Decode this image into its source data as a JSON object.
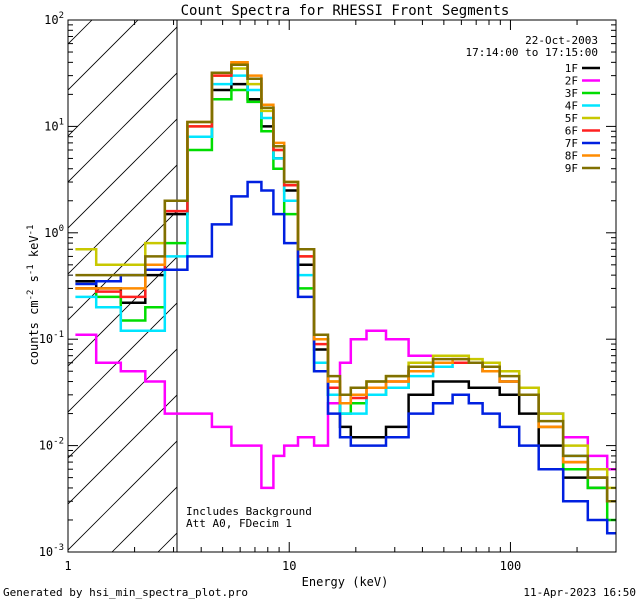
{
  "chart_data": {
    "type": "line",
    "title": "Count Spectra for RHESSI Front Segments",
    "xlabel": "Energy (keV)",
    "ylabel": "counts cm-2 s-1 keV-1",
    "xscale": "log",
    "yscale": "log",
    "xlim": [
      1,
      300
    ],
    "ylim": [
      0.001,
      100
    ],
    "x_ticks": [
      {
        "value": 1,
        "label": "1"
      },
      {
        "value": 10,
        "label": "10"
      },
      {
        "value": 100,
        "label": "100"
      }
    ],
    "y_ticks": [
      {
        "value": 0.001,
        "base": "10",
        "exp": "-3"
      },
      {
        "value": 0.01,
        "base": "10",
        "exp": "-2"
      },
      {
        "value": 0.1,
        "base": "10",
        "exp": "-1"
      },
      {
        "value": 1,
        "base": "10",
        "exp": "0"
      },
      {
        "value": 10,
        "base": "10",
        "exp": "1"
      },
      {
        "value": 100,
        "base": "10",
        "exp": "2"
      }
    ],
    "date": "22-Oct-2003",
    "time_range": "17:14:00 to 17:15:00",
    "shaded_region": {
      "from": 1,
      "to": 3,
      "style": "hatched"
    },
    "annotations": [
      "Includes Background",
      "Att A0, FDecim 1"
    ],
    "series": [
      {
        "name": "1F",
        "color": "#000000",
        "x": [
          1.2,
          1.5,
          2,
          2.5,
          3,
          4,
          5,
          6,
          7,
          8,
          9,
          10,
          12,
          14,
          16,
          18,
          20,
          25,
          30,
          40,
          50,
          60,
          70,
          80,
          100,
          120,
          150,
          200,
          250,
          300
        ],
        "values": [
          0.35,
          0.3,
          0.22,
          0.4,
          1.5,
          8,
          22,
          25,
          18,
          10,
          5,
          2.5,
          0.5,
          0.08,
          0.03,
          0.015,
          0.012,
          0.012,
          0.015,
          0.03,
          0.04,
          0.04,
          0.035,
          0.035,
          0.03,
          0.02,
          0.01,
          0.005,
          0.004,
          0.003
        ]
      },
      {
        "name": "2F",
        "color": "#ff00ff",
        "x": [
          1.2,
          1.5,
          2,
          2.5,
          3,
          4,
          5,
          6,
          7,
          8,
          9,
          10,
          12,
          14,
          16,
          18,
          20,
          25,
          30,
          40,
          50,
          60,
          70,
          80,
          100,
          120,
          150,
          200,
          250,
          300
        ],
        "values": [
          0.11,
          0.06,
          0.05,
          0.04,
          0.02,
          0.02,
          0.015,
          0.01,
          0.01,
          0.004,
          0.008,
          0.01,
          0.012,
          0.01,
          0.025,
          0.06,
          0.1,
          0.12,
          0.1,
          0.07,
          0.06,
          0.06,
          0.06,
          0.05,
          0.04,
          0.03,
          0.02,
          0.012,
          0.008,
          0.006
        ]
      },
      {
        "name": "3F",
        "color": "#00dd00",
        "x": [
          1.2,
          1.5,
          2,
          2.5,
          3,
          4,
          5,
          6,
          7,
          8,
          9,
          10,
          12,
          14,
          16,
          18,
          20,
          25,
          30,
          40,
          50,
          60,
          70,
          80,
          100,
          120,
          150,
          200,
          250,
          300
        ],
        "values": [
          0.3,
          0.25,
          0.15,
          0.2,
          0.8,
          6,
          18,
          22,
          17,
          9,
          4,
          1.5,
          0.3,
          0.05,
          0.03,
          0.02,
          0.025,
          0.03,
          0.035,
          0.05,
          0.06,
          0.06,
          0.06,
          0.05,
          0.04,
          0.03,
          0.015,
          0.006,
          0.004,
          0.002
        ]
      },
      {
        "name": "4F",
        "color": "#00e5ff",
        "x": [
          1.2,
          1.5,
          2,
          2.5,
          3,
          4,
          5,
          6,
          7,
          8,
          9,
          10,
          12,
          14,
          16,
          18,
          20,
          25,
          30,
          40,
          50,
          60,
          70,
          80,
          100,
          120,
          150,
          200,
          250,
          300
        ],
        "values": [
          0.25,
          0.2,
          0.12,
          0.12,
          0.6,
          8,
          25,
          30,
          22,
          12,
          5,
          2,
          0.4,
          0.06,
          0.03,
          0.02,
          0.02,
          0.03,
          0.035,
          0.045,
          0.055,
          0.06,
          0.06,
          0.05,
          0.04,
          0.03,
          0.02,
          0.008,
          0.005,
          0.003
        ]
      },
      {
        "name": "5F",
        "color": "#c8c800",
        "x": [
          1.2,
          1.5,
          2,
          2.5,
          3,
          4,
          5,
          6,
          7,
          8,
          9,
          10,
          12,
          14,
          16,
          18,
          20,
          25,
          30,
          40,
          50,
          60,
          70,
          80,
          100,
          120,
          150,
          200,
          250,
          300
        ],
        "values": [
          0.7,
          0.5,
          0.5,
          0.8,
          2,
          10,
          30,
          35,
          25,
          14,
          6,
          3,
          0.6,
          0.1,
          0.04,
          0.03,
          0.035,
          0.04,
          0.045,
          0.06,
          0.07,
          0.07,
          0.065,
          0.06,
          0.05,
          0.035,
          0.02,
          0.01,
          0.006,
          0.004
        ]
      },
      {
        "name": "6F",
        "color": "#ff2020",
        "x": [
          1.2,
          1.5,
          2,
          2.5,
          3,
          4,
          5,
          6,
          7,
          8,
          9,
          10,
          12,
          14,
          16,
          18,
          20,
          25,
          30,
          40,
          50,
          60,
          70,
          80,
          100,
          120,
          150,
          200,
          250,
          300
        ],
        "values": [
          0.3,
          0.28,
          0.25,
          0.45,
          1.6,
          10,
          30,
          38,
          28,
          15,
          6,
          2.8,
          0.6,
          0.09,
          0.035,
          0.025,
          0.028,
          0.035,
          0.04,
          0.05,
          0.06,
          0.06,
          0.06,
          0.05,
          0.04,
          0.03,
          0.015,
          0.007,
          0.005,
          0.003
        ]
      },
      {
        "name": "7F",
        "color": "#0020e0",
        "x": [
          1.2,
          1.5,
          2,
          2.5,
          3,
          4,
          5,
          6,
          7,
          8,
          9,
          10,
          12,
          14,
          16,
          18,
          20,
          25,
          30,
          40,
          50,
          60,
          70,
          80,
          100,
          120,
          150,
          200,
          250,
          300
        ],
        "values": [
          0.33,
          0.35,
          0.4,
          0.45,
          0.45,
          0.6,
          1.2,
          2.2,
          3,
          2.5,
          1.5,
          0.8,
          0.25,
          0.05,
          0.02,
          0.012,
          0.01,
          0.01,
          0.012,
          0.02,
          0.025,
          0.03,
          0.025,
          0.02,
          0.015,
          0.01,
          0.006,
          0.003,
          0.002,
          0.0015
        ]
      },
      {
        "name": "8F",
        "color": "#ff8c00",
        "x": [
          1.2,
          1.5,
          2,
          2.5,
          3,
          4,
          5,
          6,
          7,
          8,
          9,
          10,
          12,
          14,
          16,
          18,
          20,
          25,
          30,
          40,
          50,
          60,
          70,
          80,
          100,
          120,
          150,
          200,
          250,
          300
        ],
        "values": [
          0.3,
          0.3,
          0.3,
          0.5,
          2,
          11,
          32,
          40,
          30,
          16,
          7,
          3,
          0.7,
          0.1,
          0.04,
          0.025,
          0.03,
          0.035,
          0.04,
          0.05,
          0.06,
          0.065,
          0.06,
          0.05,
          0.04,
          0.03,
          0.015,
          0.007,
          0.005,
          0.003
        ]
      },
      {
        "name": "9F",
        "color": "#807000",
        "x": [
          1.2,
          1.5,
          2,
          2.5,
          3,
          4,
          5,
          6,
          7,
          8,
          9,
          10,
          12,
          14,
          16,
          18,
          20,
          25,
          30,
          40,
          50,
          60,
          70,
          80,
          100,
          120,
          150,
          200,
          250,
          300
        ],
        "values": [
          0.4,
          0.4,
          0.4,
          0.6,
          2,
          11,
          32,
          38,
          28,
          15,
          6.5,
          3,
          0.7,
          0.11,
          0.045,
          0.03,
          0.035,
          0.04,
          0.045,
          0.055,
          0.065,
          0.065,
          0.06,
          0.055,
          0.045,
          0.03,
          0.017,
          0.008,
          0.005,
          0.003
        ]
      }
    ]
  },
  "footer": {
    "left": "Generated by hsi_min_spectra_plot.pro",
    "right": "11-Apr-2023 16:50"
  }
}
